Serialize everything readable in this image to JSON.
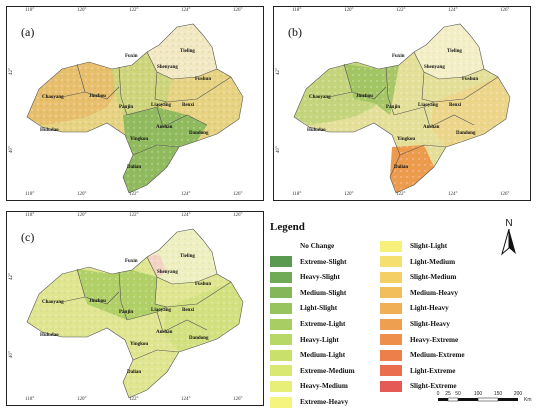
{
  "panels": [
    {
      "id": "a",
      "label": "(a)"
    },
    {
      "id": "b",
      "label": "(b)"
    },
    {
      "id": "c",
      "label": "(c)"
    }
  ],
  "top_ticks": [
    "118°",
    "120°",
    "122°",
    "124°",
    "126°"
  ],
  "bottom_ticks": [
    "118°",
    "120°",
    "122°",
    "124°",
    "126°"
  ],
  "left_ticks": [
    "42°",
    "40°"
  ],
  "cities": [
    "Tieling",
    "Fuxin",
    "Shenyang",
    "Fushun",
    "Chaoyang",
    "Jinzhou",
    "Panjin",
    "Liaoyang",
    "Benxi",
    "Huludao",
    "Anshan",
    "Yingkou",
    "Dandong",
    "Dalian"
  ],
  "legend": {
    "title": "Legend",
    "col1": [
      {
        "label": "No Change",
        "color": "#ffffff"
      },
      {
        "label": "Extreme-Slight",
        "color": "#5a9a50"
      },
      {
        "label": "Heavy-Slight",
        "color": "#6faa55"
      },
      {
        "label": "Medium-Slight",
        "color": "#83b75a"
      },
      {
        "label": "Light-Slight",
        "color": "#97c45f"
      },
      {
        "label": "Extreme-Light",
        "color": "#a6ce62"
      },
      {
        "label": "Heavy-Light",
        "color": "#b7d766"
      },
      {
        "label": "Medium-Light",
        "color": "#c9e06b"
      },
      {
        "label": "Extreme-Medium",
        "color": "#d8e872"
      },
      {
        "label": "Heavy-Medium",
        "color": "#e7ef79"
      },
      {
        "label": "Extreme-Heavy",
        "color": "#f4f47f"
      }
    ],
    "col2": [
      {
        "label": "Slight-Light",
        "color": "#f7f07a"
      },
      {
        "label": "Light-Medium",
        "color": "#f5df6e"
      },
      {
        "label": "Slight-Medium",
        "color": "#f3cf65"
      },
      {
        "label": "Medium-Heavy",
        "color": "#f2be5c"
      },
      {
        "label": "Light-Heavy",
        "color": "#f0ae55"
      },
      {
        "label": "Slight-Heavy",
        "color": "#ef9f50"
      },
      {
        "label": "Heavy-Extreme",
        "color": "#ee904c"
      },
      {
        "label": "Medium-Extreme",
        "color": "#ed7f4a"
      },
      {
        "label": "Light-Extreme",
        "color": "#ea6e4e"
      },
      {
        "label": "Slight-Extreme",
        "color": "#e65a55"
      }
    ]
  },
  "north_label": "N",
  "scale": {
    "ticks": [
      "0",
      "25",
      "50",
      "100",
      "150",
      "200"
    ],
    "unit": "Km"
  },
  "colors": {
    "a": {
      "base": "#e5cf7a",
      "west": "#e9b763",
      "south": "#86b55a",
      "north": "#f3ebc6"
    },
    "b": {
      "base": "#e3e29a",
      "west": "#a7c865",
      "south": "#ed9c4e",
      "north": "#f4efc9"
    },
    "c": {
      "base": "#dde493",
      "west": "#b8d66a",
      "south": "#d7e48a",
      "north": "#f1f0c8"
    }
  }
}
